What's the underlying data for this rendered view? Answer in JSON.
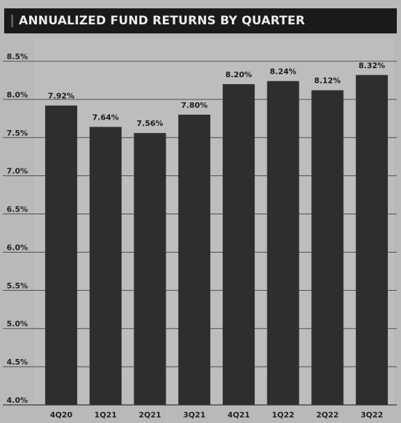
{
  "chart_data": {
    "type": "bar",
    "title": "ANNUALIZED FUND RETURNS BY QUARTER",
    "categories": [
      "4Q20",
      "1Q21",
      "2Q21",
      "3Q21",
      "4Q21",
      "1Q22",
      "2Q22",
      "3Q22"
    ],
    "values": [
      7.92,
      7.64,
      7.56,
      7.8,
      8.2,
      8.24,
      8.12,
      8.32
    ],
    "data_labels": [
      "7.92%",
      "7.64%",
      "7.56%",
      "7.80%",
      "8.20%",
      "8.24%",
      "8.12%",
      "8.32%"
    ],
    "ylim": [
      4.0,
      8.5
    ],
    "yticks": [
      4.0,
      4.5,
      5.0,
      5.5,
      6.0,
      6.5,
      7.0,
      7.5,
      8.0,
      8.5
    ],
    "ytick_labels": [
      "4.0%",
      "4.5%",
      "5.0%",
      "5.5%",
      "6.0%",
      "6.5%",
      "7.0%",
      "7.5%",
      "8.0%",
      "8.5%"
    ],
    "xlabel": "",
    "ylabel": "",
    "grid": true,
    "bar_color": "#2e2e2e",
    "header_color": "#1a1a1a",
    "background_color": "#b9b9b9"
  }
}
